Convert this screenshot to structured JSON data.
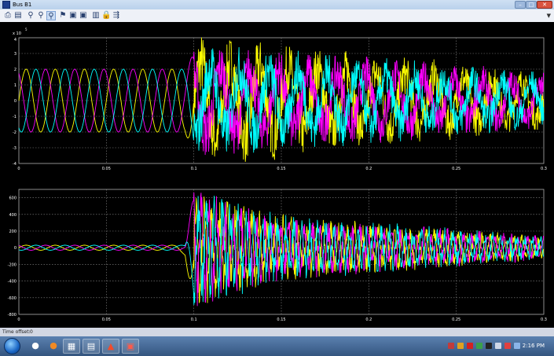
{
  "window": {
    "title": "Bus B1"
  },
  "toolbar": {
    "icons": [
      "print-icon",
      "parameters-icon",
      "zoom-in-icon",
      "zoom-x-icon",
      "zoom-y-icon",
      "autoscale-icon",
      "save-axes-icon",
      "restore-axes-icon",
      "floating-scope-icon",
      "lock-icon",
      "signal-selection-icon"
    ]
  },
  "plots": [
    {
      "exponent_label": "x 10",
      "exponent_power": "5",
      "y_tick_labels": [
        "4",
        "3",
        "2",
        "1",
        "0",
        "-1",
        "-2",
        "-3",
        "-4"
      ],
      "x_tick_labels": [
        "0",
        "0.05",
        "0.1",
        "0.15",
        "0.2",
        "0.25",
        "0.3"
      ]
    },
    {
      "y_tick_labels": [
        "600",
        "400",
        "200",
        "0",
        "-200",
        "-400",
        "-600",
        "-800"
      ],
      "x_tick_labels": [
        "0",
        "0.05",
        "0.1",
        "0.15",
        "0.2",
        "0.25",
        "0.3"
      ]
    }
  ],
  "colors": {
    "phase_a": "#ffff00",
    "phase_b": "#ff00ff",
    "phase_c": "#00ffff",
    "axes_bg": "#000000",
    "grid": "#8a8a8a"
  },
  "chart_data": [
    {
      "type": "line",
      "title": "",
      "xlabel": "",
      "ylabel": "",
      "xlim": [
        0,
        0.3
      ],
      "ylim": [
        -4,
        4
      ],
      "y_scale_factor": "x 10^5",
      "grid": true,
      "series": [
        {
          "color": "#ffff00",
          "description_points": {
            "x": [
              0,
              0.095,
              0.1,
              0.3
            ],
            "amplitude": [
              2,
              2,
              3.5,
              1.5
            ]
          }
        },
        {
          "color": "#ff00ff",
          "description_points": {
            "x": [
              0,
              0.095,
              0.1,
              0.3
            ],
            "amplitude": [
              2,
              2,
              3.0,
              1.5
            ]
          }
        },
        {
          "color": "#00ffff",
          "description_points": {
            "x": [
              0,
              0.095,
              0.1,
              0.3
            ],
            "amplitude": [
              2,
              2,
              3.0,
              1.5
            ]
          }
        }
      ]
    },
    {
      "type": "line",
      "title": "",
      "xlabel": "",
      "ylabel": "",
      "xlim": [
        0,
        0.3
      ],
      "ylim": [
        -800,
        700
      ],
      "grid": true,
      "series": [
        {
          "color": "#ffff00",
          "description_points": {
            "x": [
              0,
              0.095,
              0.1,
              0.15,
              0.3
            ],
            "amplitude": [
              30,
              30,
              650,
              350,
              130
            ]
          }
        },
        {
          "color": "#ff00ff",
          "description_points": {
            "x": [
              0,
              0.095,
              0.1,
              0.15,
              0.3
            ],
            "amplitude": [
              30,
              30,
              650,
              350,
              130
            ]
          }
        },
        {
          "color": "#00ffff",
          "description_points": {
            "x": [
              0,
              0.095,
              0.1,
              0.15,
              0.3
            ],
            "amplitude": [
              30,
              30,
              650,
              350,
              130
            ]
          }
        }
      ]
    }
  ],
  "status": {
    "time_offset_label": "Time offset:",
    "time_offset_value": "0"
  },
  "taskbar": {
    "clock": "2:16 PM"
  }
}
